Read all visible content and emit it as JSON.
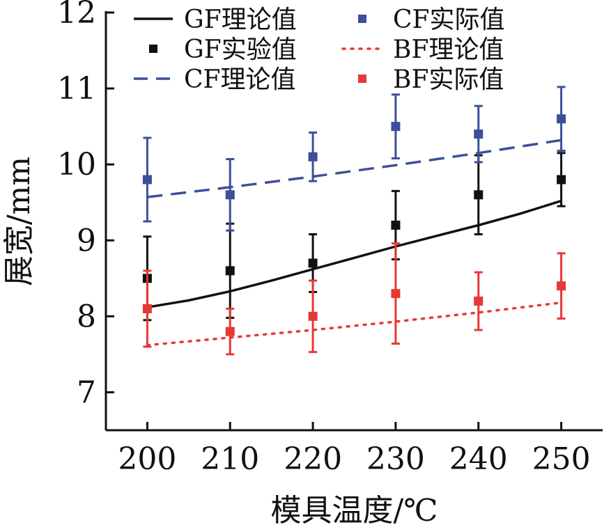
{
  "chart_data": {
    "type": "line",
    "xlabel": "模具温度/℃",
    "ylabel": "展宽/mm",
    "xlim": [
      195,
      255
    ],
    "ylim": [
      6.5,
      12
    ],
    "xticks": [
      200,
      210,
      220,
      230,
      240,
      250
    ],
    "yticks": [
      7,
      8,
      9,
      10,
      11,
      12
    ],
    "legend_position": "top-left",
    "series": [
      {
        "name": "GF理论值",
        "kind": "line",
        "style": "solid",
        "color": "#111111",
        "x": [
          200,
          205,
          210,
          215,
          220,
          225,
          230,
          235,
          240,
          245,
          250
        ],
        "y": [
          8.12,
          8.21,
          8.33,
          8.47,
          8.62,
          8.77,
          8.92,
          9.06,
          9.2,
          9.35,
          9.52
        ]
      },
      {
        "name": "GF实验值",
        "kind": "points",
        "color": "#111111",
        "x": [
          200,
          210,
          220,
          230,
          240,
          250
        ],
        "y": [
          8.5,
          8.6,
          8.7,
          9.2,
          9.6,
          9.8
        ],
        "err": [
          0.55,
          0.62,
          0.38,
          0.45,
          0.52,
          0.35
        ]
      },
      {
        "name": "CF理论值",
        "kind": "line",
        "style": "dashed",
        "color": "#3d4f9a",
        "x": [
          200,
          210,
          220,
          230,
          240,
          250
        ],
        "y": [
          9.57,
          9.7,
          9.84,
          9.99,
          10.15,
          10.32
        ]
      },
      {
        "name": "CF实际值",
        "kind": "points",
        "color": "#3d4f9a",
        "x": [
          200,
          210,
          220,
          230,
          240,
          250
        ],
        "y": [
          9.8,
          9.6,
          10.1,
          10.5,
          10.4,
          10.6
        ],
        "err": [
          0.55,
          0.47,
          0.32,
          0.42,
          0.37,
          0.42
        ]
      },
      {
        "name": "BF理论值",
        "kind": "line",
        "style": "dotted",
        "color": "#e53935",
        "x": [
          200,
          210,
          220,
          230,
          240,
          250
        ],
        "y": [
          7.62,
          7.72,
          7.82,
          7.93,
          8.05,
          8.18
        ]
      },
      {
        "name": "BF实际值",
        "kind": "points",
        "color": "#e53935",
        "x": [
          200,
          210,
          220,
          230,
          240,
          250
        ],
        "y": [
          8.1,
          7.8,
          8.0,
          8.3,
          8.2,
          8.4
        ],
        "err": [
          0.5,
          0.3,
          0.47,
          0.66,
          0.38,
          0.43
        ]
      }
    ]
  }
}
